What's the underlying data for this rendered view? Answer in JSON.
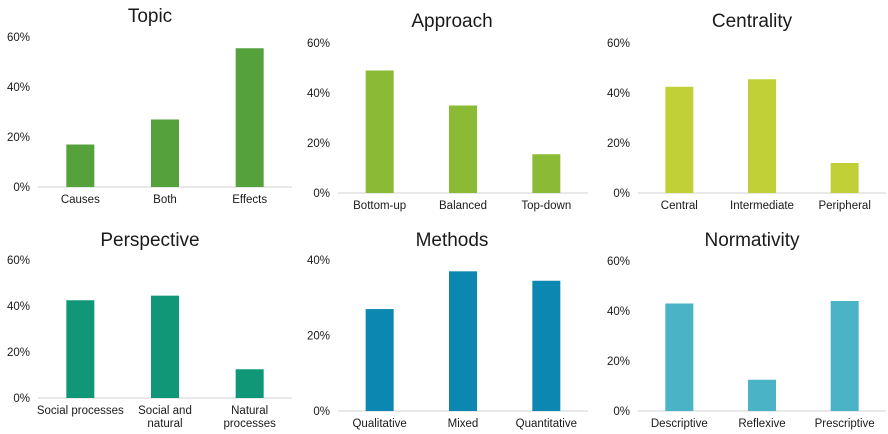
{
  "chart_data": [
    {
      "type": "bar",
      "title": "Topic",
      "categories": [
        "Causes",
        "Both",
        "Effects"
      ],
      "values": [
        0.17,
        0.27,
        0.555
      ],
      "ylim": [
        0,
        0.6
      ],
      "yticks": [
        "0%",
        "20%",
        "40%",
        "60%"
      ],
      "color": "#55a13b",
      "grid": false,
      "legend": "none"
    },
    {
      "type": "bar",
      "title": "Approach",
      "categories": [
        "Bottom-up",
        "Balanced",
        "Top-down"
      ],
      "values": [
        0.49,
        0.35,
        0.155
      ],
      "ylim": [
        0,
        0.6
      ],
      "yticks": [
        "0%",
        "20%",
        "40%",
        "60%"
      ],
      "color": "#8bba34",
      "grid": false,
      "legend": "none"
    },
    {
      "type": "bar",
      "title": "Centrality",
      "categories": [
        "Central",
        "Intermediate",
        "Peripheral"
      ],
      "values": [
        0.425,
        0.455,
        0.12
      ],
      "ylim": [
        0,
        0.6
      ],
      "yticks": [
        "0%",
        "20%",
        "40%",
        "60%"
      ],
      "color": "#c1d037",
      "grid": false,
      "legend": "none"
    },
    {
      "type": "bar",
      "title": "Perspective",
      "categories": [
        [
          "Social processes"
        ],
        [
          "Social and",
          "natural"
        ],
        [
          "Natural",
          "processes"
        ]
      ],
      "values": [
        0.425,
        0.445,
        0.125
      ],
      "ylim": [
        0,
        0.6
      ],
      "yticks": [
        "0%",
        "20%",
        "40%",
        "60%"
      ],
      "color": "#0f9778",
      "grid": false,
      "legend": "none"
    },
    {
      "type": "bar",
      "title": "Methods",
      "categories": [
        "Qualitative",
        "Mixed",
        "Quantitative"
      ],
      "values": [
        0.27,
        0.37,
        0.345
      ],
      "ylim": [
        0,
        0.4
      ],
      "yticks": [
        "0%",
        "20%",
        "40%"
      ],
      "color": "#0c87b1",
      "grid": false,
      "legend": "none"
    },
    {
      "type": "bar",
      "title": "Normativity",
      "categories": [
        "Descriptive",
        "Reflexive",
        "Prescriptive"
      ],
      "values": [
        0.43,
        0.125,
        0.44
      ],
      "ylim": [
        0,
        0.6
      ],
      "yticks": [
        "0%",
        "20%",
        "40%",
        "60%"
      ],
      "color": "#4bb3c6",
      "grid": false,
      "legend": "none"
    }
  ]
}
